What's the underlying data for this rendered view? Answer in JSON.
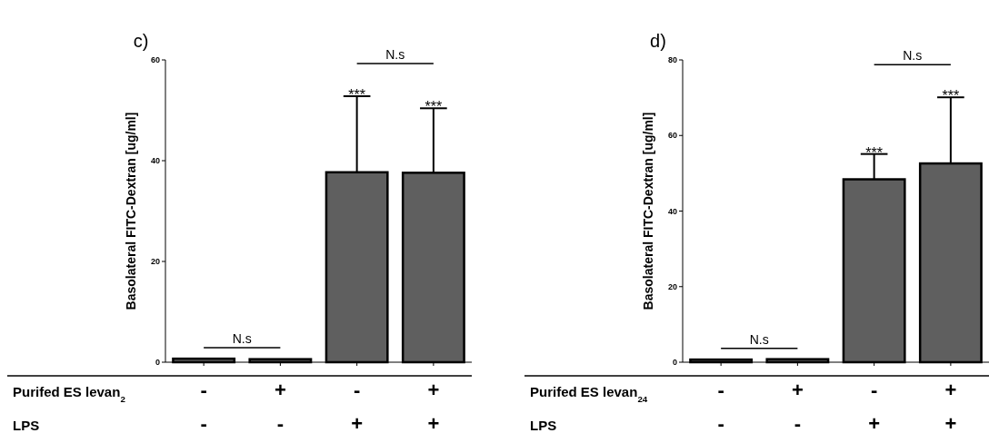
{
  "chart_data": [
    {
      "type": "bar",
      "title": "c)",
      "ylabel": "Basolateral FITC-Dextran [ug/ml]",
      "categories": [
        null,
        null,
        null,
        null
      ],
      "values": [
        0.7,
        0.6,
        37.7,
        37.6
      ],
      "errors": [
        null,
        null,
        [
          37.7,
          52.8
        ],
        [
          37.6,
          50.4
        ]
      ],
      "color": "#5f5f5f",
      "ylim": [
        0,
        60
      ],
      "yticks": [
        0,
        20,
        40,
        60
      ],
      "annotations": [
        "Purifed ES levan$_{2}$",
        "-",
        "+",
        "-",
        "+",
        "LPS",
        "-",
        "-",
        "+",
        "+",
        "N.s",
        "***",
        "***",
        "N.s"
      ]
    },
    {
      "type": "bar",
      "title": "d)",
      "ylabel": "Basolateral FITC-Dextran [ug/ml]",
      "categories": [
        null,
        null,
        null,
        null
      ],
      "values": [
        0.7,
        0.8,
        48.4,
        52.6
      ],
      "errors": [
        null,
        null,
        [
          48.4,
          55.1
        ],
        [
          52.6,
          70.1
        ]
      ],
      "color": "#5f5f5f",
      "ylim": [
        0,
        80
      ],
      "yticks": [
        0,
        20,
        40,
        60,
        80
      ],
      "annotations": [
        "Purifed ES levan$_{24}$",
        "-",
        "+",
        "-",
        "+",
        "LPS",
        "-",
        "-",
        "+",
        "+",
        "N.s",
        "***",
        "***",
        "N.s"
      ]
    }
  ]
}
